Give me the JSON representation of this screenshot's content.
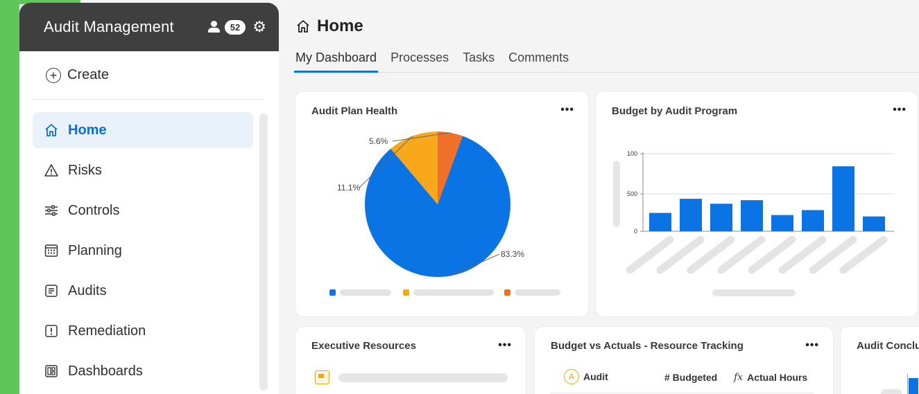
{
  "sidebar": {
    "title": "Audit Management",
    "notification_count": "52",
    "create_label": "Create",
    "items": [
      {
        "label": "Home",
        "icon": "home-icon",
        "active": true
      },
      {
        "label": "Risks",
        "icon": "warning-icon"
      },
      {
        "label": "Controls",
        "icon": "sliders-icon"
      },
      {
        "label": "Planning",
        "icon": "calendar-icon"
      },
      {
        "label": "Audits",
        "icon": "document-icon"
      },
      {
        "label": "Remediation",
        "icon": "alert-box-icon"
      },
      {
        "label": "Dashboards",
        "icon": "dashboard-icon"
      }
    ]
  },
  "page": {
    "title": "Home",
    "tabs": [
      "My Dashboard",
      "Processes",
      "Tasks",
      "Comments"
    ],
    "active_tab": "My Dashboard"
  },
  "cards": {
    "audit_plan_health": {
      "title": "Audit Plan Health",
      "menu": "•••"
    },
    "budget_by_program": {
      "title": "Budget by Audit Program",
      "menu": "•••"
    },
    "executive_resources": {
      "title": "Executive Resources",
      "menu": "•••"
    },
    "budget_vs_actuals": {
      "title": "Budget vs Actuals - Resource Tracking",
      "menu": "•••",
      "columns": [
        "Audit",
        "# Budgeted",
        "Actual Hours"
      ],
      "audit_badge": "A",
      "fx_symbol": "fx"
    },
    "audit_conclusions": {
      "title": "Audit Conclu"
    }
  },
  "chart_data": [
    {
      "type": "pie",
      "title": "Audit Plan Health",
      "slices": [
        {
          "label": "83.3%",
          "value": 83.3,
          "color": "#0b74e5"
        },
        {
          "label": "11.1%",
          "value": 11.1,
          "color": "#f8a81a"
        },
        {
          "label": "5.6%",
          "value": 5.6,
          "color": "#f0702a"
        }
      ]
    },
    {
      "type": "bar",
      "title": "Budget by Audit Program",
      "ytick_labels": [
        "100",
        "500",
        "0"
      ],
      "values": [
        260,
        460,
        390,
        440,
        230,
        300,
        920,
        210
      ],
      "ylim": [
        0,
        1000
      ],
      "color": "#0b74e5"
    }
  ]
}
